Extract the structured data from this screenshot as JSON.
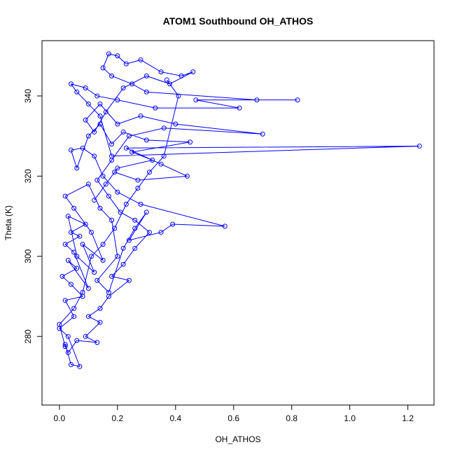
{
  "chart_data": {
    "type": "line",
    "markers": true,
    "title": "ATOM1 Southbound OH_ATHOS",
    "x_label": "OH_ATHOS",
    "y_label": "Theta (K)",
    "xlim": [
      -0.06,
      1.29
    ],
    "ylim": [
      262.9,
      353.8
    ],
    "xticks": [
      {
        "value": 0,
        "label": "0.0"
      },
      0.2,
      0.4,
      0.6,
      0.8,
      {
        "value": 1,
        "label": "1.0"
      },
      1.2
    ],
    "yticks": [
      280,
      300,
      320,
      340
    ],
    "x": [
      0.02,
      0.04,
      0.07,
      0.03,
      0.0,
      0.05,
      0.02,
      0.08,
      0.04,
      0.01,
      0.06,
      0.03,
      0.1,
      0.05,
      0.02,
      0.07,
      0.04,
      0.09,
      0.03,
      0.06,
      0.12,
      0.08,
      0.15,
      0.11,
      0.05,
      0.02,
      0.1,
      0.14,
      0.18,
      0.2,
      0.13,
      0.17,
      0.22,
      0.26,
      0.3,
      0.24,
      0.35,
      0.39,
      0.57,
      0.28,
      0.2,
      0.15,
      0.12,
      0.08,
      0.04,
      0.06,
      0.1,
      0.14,
      0.18,
      0.22,
      0.3,
      0.45,
      0.25,
      0.32,
      0.2,
      0.16,
      0.12,
      0.19,
      0.27,
      0.44,
      0.35,
      0.23,
      1.24,
      0.18,
      0.14,
      0.1,
      0.06,
      0.04,
      0.09,
      0.13,
      0.2,
      0.33,
      0.62,
      0.47,
      0.82,
      0.68,
      0.3,
      0.25,
      0.18,
      0.15,
      0.17,
      0.2,
      0.23,
      0.28,
      0.35,
      0.42,
      0.46,
      0.38,
      0.3,
      0.22,
      0.16,
      0.12,
      0.09,
      0.14,
      0.2,
      0.28,
      0.4,
      0.7,
      0.36,
      0.24,
      0.18,
      0.13,
      0.17,
      0.21,
      0.26,
      0.31,
      0.26,
      0.22,
      0.18,
      0.24,
      0.17,
      0.14,
      0.1,
      0.14,
      0.09,
      0.13,
      0.06,
      0.03,
      0.02,
      0.0,
      0.05,
      0.08,
      0.11,
      0.15,
      0.19,
      0.23,
      0.27,
      0.31,
      0.36,
      0.41,
      0.37
    ],
    "series": [
      {
        "color": "#0000ff",
        "values": [
          278,
          273,
          272.5,
          280,
          282,
          285,
          289,
          290,
          293,
          295,
          297,
          299,
          292,
          301,
          303,
          305,
          306,
          308,
          310,
          300,
          296,
          303,
          299,
          306,
          312,
          315,
          318,
          312,
          309,
          300,
          294,
          291,
          302,
          307,
          311,
          304,
          306,
          308,
          307.5,
          313,
          316,
          320,
          325,
          327,
          326.5,
          322,
          330,
          333,
          328,
          331,
          329,
          328.5,
          326,
          324,
          322,
          318,
          314,
          321,
          319,
          320,
          323,
          327,
          327.5,
          325,
          335,
          338,
          341,
          343,
          342,
          340,
          339,
          337,
          337,
          339,
          339,
          339,
          341,
          343,
          345,
          347,
          350.5,
          350,
          348,
          349,
          346,
          345,
          346,
          343,
          345,
          342,
          336,
          331,
          334,
          338,
          333,
          335,
          333,
          330.5,
          332,
          330,
          324,
          319,
          315,
          311,
          309,
          306,
          302,
          298,
          295,
          294,
          290,
          287,
          285,
          283.5,
          280,
          278.5,
          279,
          276,
          277.5,
          283,
          287,
          291,
          300,
          303,
          307,
          313,
          317,
          321,
          325,
          340,
          344
        ]
      }
    ]
  }
}
